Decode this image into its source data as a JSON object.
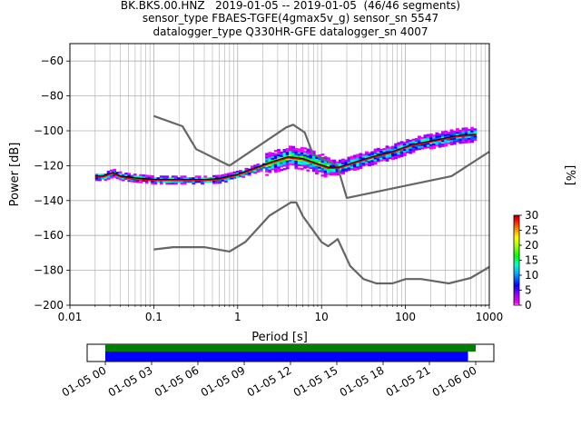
{
  "title_lines": [
    "BK.BKS.00.HNZ   2019-01-05 -- 2019-01-05  (46/46 segments)",
    "sensor_type FBAES-TGFE(4gmax5v_g) sensor_sn 5547",
    "datalogger_type Q330HR-GFE datalogger_sn 4007"
  ],
  "chart_data": {
    "type": "line",
    "title": "BK.BKS.00.HNZ   2019-01-05 -- 2019-01-05  (46/46 segments)",
    "xlabel": "Period [s]",
    "ylabel": "Power [dB]",
    "xscale": "log",
    "xlim": [
      0.01,
      1000
    ],
    "ylim": [
      -200,
      -50
    ],
    "x_ticks": [
      "0.01",
      "0.1",
      "1",
      "10",
      "100",
      "1000"
    ],
    "y_ticks": [
      "−60",
      "−80",
      "−100",
      "−120",
      "−140",
      "−160",
      "−180",
      "−200"
    ],
    "grid": true,
    "series": [
      {
        "role": "new-high-noise-model",
        "color": "#666666",
        "x": [
          0.1,
          0.22,
          0.32,
          0.8,
          3.8,
          4.6,
          6.3,
          7.9,
          15.4,
          20,
          354.8,
          1000
        ],
        "y": [
          -91.5,
          -97.4,
          -110.5,
          -120,
          -98,
          -96.5,
          -101,
          -113.5,
          -120,
          -138.5,
          -126,
          -112
        ]
      },
      {
        "role": "new-low-noise-model",
        "color": "#666666",
        "x": [
          0.1,
          0.17,
          0.4,
          0.8,
          1.24,
          2.4,
          4.3,
          5,
          6,
          10,
          12,
          15.6,
          21.9,
          31.6,
          45,
          70,
          101,
          154,
          328,
          600,
          1000
        ],
        "y": [
          -168,
          -166.7,
          -166.7,
          -169.2,
          -163.7,
          -148.6,
          -141.1,
          -141.1,
          -149,
          -163.8,
          -166.2,
          -162.1,
          -177.5,
          -185,
          -187.5,
          -187.5,
          -185,
          -185,
          -187.5,
          -184.4,
          -178
        ]
      },
      {
        "role": "mode",
        "color": "#000000",
        "x": [
          0.02,
          0.025,
          0.032,
          0.04,
          0.06,
          0.1,
          0.2,
          0.4,
          0.6,
          1.0,
          1.5,
          2.5,
          4.0,
          6.0,
          9.0,
          12,
          16,
          25,
          40,
          70,
          120,
          250,
          400,
          700
        ],
        "y": [
          -126,
          -126,
          -124,
          -126,
          -127,
          -128,
          -128,
          -128,
          -127.5,
          -125,
          -122,
          -118,
          -115,
          -116,
          -119,
          -121,
          -121,
          -118,
          -115,
          -112,
          -108,
          -105,
          -103,
          -102
        ]
      },
      {
        "role": "mean",
        "color": "#e8000b",
        "x": [
          0.02,
          0.025,
          0.032,
          0.04,
          0.06,
          0.1,
          0.2,
          0.4,
          0.6,
          1.0,
          1.5,
          2.5,
          4.0,
          6.0,
          9.0,
          12,
          16,
          25,
          40,
          70,
          120,
          250,
          400,
          700
        ],
        "y": [
          -126.5,
          -126.5,
          -124.5,
          -126.5,
          -128,
          -128.5,
          -128.5,
          -128.5,
          -128,
          -125.5,
          -122.5,
          -118.5,
          -115.5,
          -116.5,
          -119.5,
          -121.5,
          -121.5,
          -118.5,
          -115.5,
          -112.5,
          -108.5,
          -105.5,
          -103.5,
          -102.5
        ]
      }
    ],
    "colorbar": {
      "label": "[%]",
      "range": [
        0,
        30
      ],
      "ticks": [
        "0",
        "5",
        "10",
        "15",
        "20",
        "25",
        "30"
      ],
      "colormap": "pqlx"
    },
    "time_axis": {
      "ticks": [
        "01-05 00",
        "01-05 03",
        "01-05 06",
        "01-05 09",
        "01-05 12",
        "01-05 15",
        "01-05 18",
        "01-05 21",
        "01-06 00"
      ],
      "coverage_green_hours": [
        0,
        24
      ],
      "coverage_blue_hours": [
        0,
        23.5
      ]
    }
  }
}
